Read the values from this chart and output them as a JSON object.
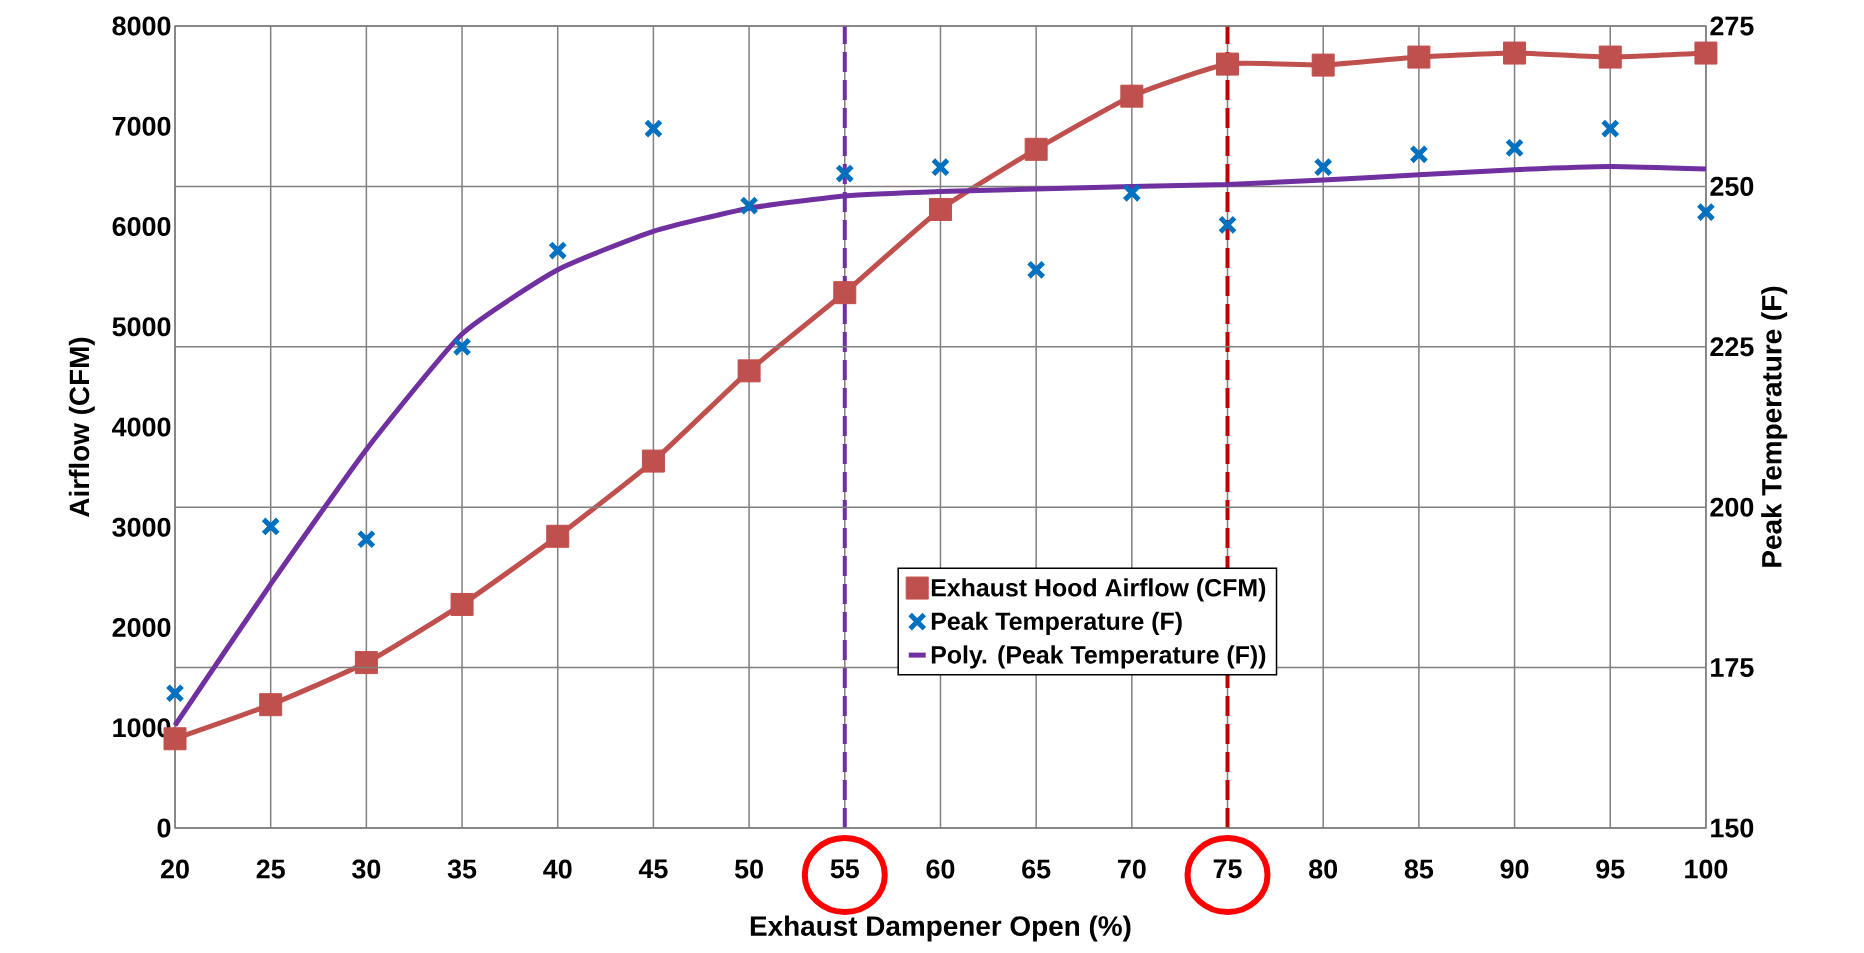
{
  "chart_data": {
    "type": "line",
    "xlabel": "Exhaust Dampener Open (%)",
    "ylabel": "Airflow (CFM)",
    "y2label": "Peak Temperature (F)",
    "x": [
      20,
      25,
      30,
      35,
      40,
      45,
      50,
      55,
      60,
      65,
      70,
      75,
      80,
      85,
      90,
      95,
      100
    ],
    "series": [
      {
        "name": "Exhaust Hood Airflow (CFM)",
        "marker": "square",
        "color": "#c0504d",
        "axis": "y",
        "values": [
          890,
          1230,
          1650,
          2230,
          2910,
          3660,
          4560,
          5340,
          6170,
          6770,
          7300,
          7620,
          7610,
          7690,
          7730,
          7690,
          7730
        ]
      },
      {
        "name": "Peak Temperature (F)",
        "type": "scatter",
        "marker": "cross",
        "color": "#0070c0",
        "axis": "y2",
        "values": [
          171,
          197,
          195,
          225,
          240,
          259,
          247,
          252,
          253,
          237,
          249,
          244,
          253,
          255,
          256,
          259,
          246
        ]
      },
      {
        "name": "Poly. (Peak Temperature (F))",
        "marker": "none",
        "color": "#7030a0",
        "axis": "y2",
        "values": [
          166,
          188,
          209,
          227,
          237,
          243,
          246.6,
          248.5,
          249.2,
          249.6,
          250,
          250.3,
          251,
          251.8,
          252.6,
          253.1,
          252.7
        ]
      }
    ],
    "xlim": [
      20,
      100
    ],
    "xticks": [
      20,
      25,
      30,
      35,
      40,
      45,
      50,
      55,
      60,
      65,
      70,
      75,
      80,
      85,
      90,
      95,
      100
    ],
    "ylim": [
      0,
      8000
    ],
    "yticks": [
      0,
      1000,
      2000,
      3000,
      4000,
      5000,
      6000,
      7000,
      8000
    ],
    "y2lim": [
      150,
      275
    ],
    "y2ticks": [
      150,
      175,
      200,
      225,
      250,
      275
    ],
    "ref_lines": [
      {
        "axis": "x",
        "value": 55,
        "color": "#7030a0",
        "line_style": "dashed"
      },
      {
        "axis": "x",
        "value": 75,
        "color": "#c00000",
        "line_style": "dashed"
      }
    ],
    "grid": true,
    "legend": "right"
  }
}
